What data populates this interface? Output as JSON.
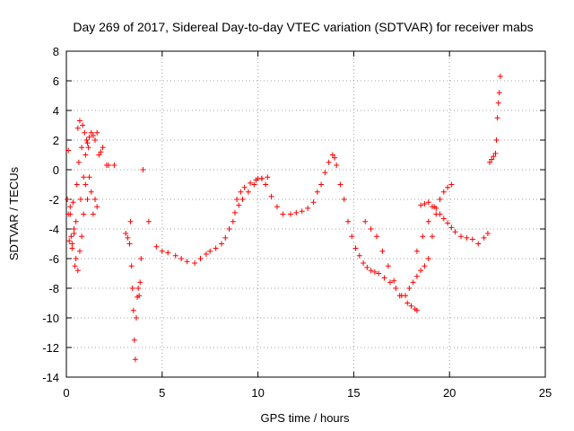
{
  "chart_data": {
    "type": "scatter",
    "title": "Day 269 of 2017, Sidereal Day-to-day VTEC variation (SDTVAR) for receiver mabs",
    "xlabel": "GPS time / hours",
    "ylabel": "SDTVAR / TECUs",
    "xlim": [
      0,
      25
    ],
    "ylim": [
      -14,
      8
    ],
    "xticks": [
      0,
      5,
      10,
      15,
      20,
      25
    ],
    "yticks": [
      -14,
      -12,
      -10,
      -8,
      -6,
      -4,
      -2,
      0,
      2,
      4,
      6,
      8
    ],
    "grid": true,
    "marker": "+",
    "color": "#ff0000",
    "series": [
      {
        "name": "SDTVAR",
        "x": [
          0.05,
          0.1,
          0.15,
          0.2,
          0.25,
          0.3,
          0.35,
          0.4,
          0.45,
          0.5,
          0.55,
          0.6,
          0.65,
          0.7,
          0.75,
          0.8,
          0.85,
          0.9,
          0.95,
          1.0,
          1.05,
          1.1,
          1.15,
          1.2,
          1.3,
          1.4,
          1.5,
          1.6,
          1.7,
          1.8,
          1.9,
          2.1,
          2.2,
          2.5,
          0.1,
          0.2,
          0.3,
          0.4,
          0.5,
          0.6,
          0.7,
          0.8,
          0.9,
          1.0,
          1.1,
          1.2,
          1.3,
          1.4,
          1.5,
          1.6,
          3.1,
          3.2,
          3.3,
          3.35,
          3.4,
          3.45,
          3.5,
          3.55,
          3.6,
          3.65,
          3.7,
          3.75,
          3.8,
          3.85,
          3.9,
          4.0,
          4.3,
          4.7,
          5.0,
          5.3,
          5.7,
          6.0,
          6.3,
          6.7,
          7.0,
          7.3,
          7.5,
          7.8,
          8.1,
          8.3,
          8.5,
          8.7,
          8.8,
          9.0,
          9.2,
          9.5,
          9.8,
          10.0,
          10.2,
          10.4,
          10.7,
          11.0,
          11.3,
          11.7,
          12.0,
          12.3,
          12.6,
          12.9,
          13.1,
          13.3,
          13.5,
          13.7,
          13.9,
          14.0,
          14.1,
          8.9,
          9.1,
          9.3,
          9.6,
          9.9,
          10.2,
          10.5,
          14.3,
          14.5,
          14.7,
          14.9,
          15.1,
          15.3,
          15.5,
          15.7,
          15.9,
          16.1,
          16.3,
          16.6,
          16.9,
          17.2,
          17.5,
          17.8,
          18.0,
          18.2,
          18.3,
          15.6,
          15.9,
          16.2,
          16.5,
          16.8,
          17.1,
          17.4,
          17.7,
          17.9,
          18.1,
          18.3,
          18.5,
          18.7,
          18.9,
          19.1,
          19.3,
          19.5,
          19.7,
          19.9,
          20.1,
          18.3,
          18.6,
          18.9,
          19.2,
          19.5,
          18.5,
          18.7,
          18.9,
          19.1,
          19.3,
          19.5,
          19.7,
          19.9,
          20.1,
          20.3,
          20.6,
          20.9,
          21.2,
          21.5,
          21.8,
          22.0,
          22.1,
          22.2,
          22.3,
          22.4,
          22.45,
          22.5,
          22.55,
          22.6,
          22.65
        ],
        "y": [
          -2.0,
          1.3,
          -4.8,
          -3.0,
          -4.5,
          -5.3,
          -2.2,
          -4.0,
          -6.5,
          -3.5,
          -1.0,
          2.8,
          0.5,
          3.3,
          -2.0,
          1.5,
          3.0,
          -0.5,
          2.5,
          1.0,
          2.0,
          1.8,
          1.5,
          2.2,
          2.5,
          2.3,
          2.0,
          2.5,
          1.0,
          1.2,
          1.5,
          0.3,
          0.3,
          0.3,
          -3.0,
          -2.5,
          -5.0,
          -4.3,
          -6.0,
          -6.8,
          -5.5,
          -4.5,
          -3.0,
          -1.0,
          -2.0,
          -0.5,
          -1.5,
          -3.0,
          -2.0,
          -2.5,
          -4.3,
          -4.6,
          -5.0,
          -3.5,
          -6.5,
          -8.0,
          -9.5,
          -11.5,
          -12.8,
          -10.0,
          -8.6,
          -8.0,
          -8.5,
          -7.6,
          -6.0,
          0.0,
          -3.5,
          -5.2,
          -5.5,
          -5.6,
          -5.8,
          -6.0,
          -6.2,
          -6.3,
          -6.0,
          -5.7,
          -5.5,
          -5.3,
          -5.0,
          -4.6,
          -4.0,
          -3.5,
          -2.9,
          -2.4,
          -2.0,
          -1.5,
          -1.0,
          -0.6,
          -0.6,
          -1.0,
          -1.8,
          -2.5,
          -3.0,
          -3.0,
          -2.9,
          -2.8,
          -2.6,
          -2.2,
          -1.5,
          -1.0,
          -0.2,
          0.5,
          1.0,
          0.8,
          0.3,
          -2.0,
          -1.5,
          -1.2,
          -0.9,
          -0.7,
          -0.6,
          -0.5,
          -1.0,
          -2.0,
          -3.5,
          -4.5,
          -5.3,
          -5.8,
          -6.3,
          -6.6,
          -6.8,
          -6.9,
          -7.0,
          -7.3,
          -7.6,
          -8.0,
          -8.5,
          -9.0,
          -9.2,
          -9.4,
          -9.5,
          -3.5,
          -4.0,
          -4.5,
          -5.5,
          -6.5,
          -7.5,
          -8.5,
          -8.5,
          -8.0,
          -7.6,
          -7.2,
          -6.8,
          -6.5,
          -6.0,
          -4.5,
          -3.0,
          -2.0,
          -1.5,
          -1.2,
          -1.0,
          -5.5,
          -4.5,
          -3.5,
          -2.5,
          -2.0,
          -2.4,
          -2.3,
          -2.2,
          -2.5,
          -2.6,
          -3.0,
          -3.3,
          -3.6,
          -3.9,
          -4.2,
          -4.5,
          -4.6,
          -4.7,
          -5.0,
          -4.6,
          -4.3,
          0.5,
          0.7,
          0.9,
          1.1,
          2.0,
          3.5,
          4.5,
          5.2,
          6.3
        ]
      }
    ]
  }
}
